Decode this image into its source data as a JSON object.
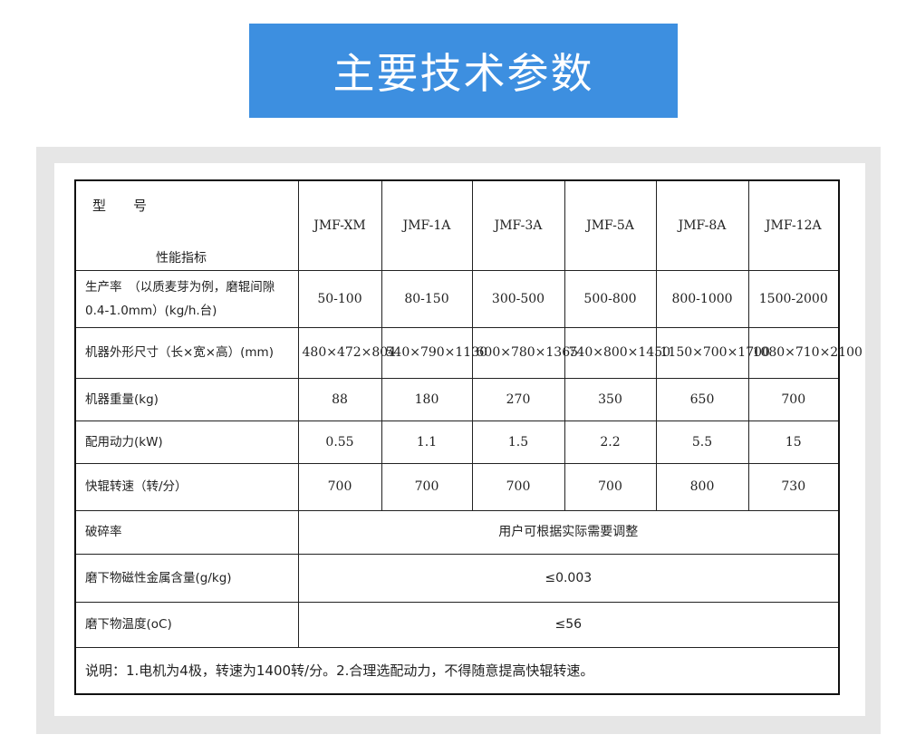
{
  "title": "主要技术参数",
  "colors": {
    "title_bg": "#3d8fe0",
    "panel_bg": "#e6e6e6"
  },
  "table": {
    "header": {
      "model_label": "型　　号",
      "metric_label": "性能指标",
      "models": [
        "JMF-XM",
        "JMF-1A",
        "JMF-3A",
        "JMF-5A",
        "JMF-8A",
        "JMF-12A"
      ]
    },
    "rows": [
      {
        "label": "生产率　（以质麦芽为例，磨辊间隙 0.4-1.0mm）(kg/h.台)",
        "values": [
          "50-100",
          "80-150",
          "300-500",
          "500-800",
          "800-1000",
          "1500-2000"
        ]
      },
      {
        "label": "机器外形尺寸（长×宽×高）(mm)",
        "values": [
          "480×472×804",
          "540×790×1130",
          "600×780×1365",
          "740×800×1450",
          "1150×700×1700",
          "1080×710×2100"
        ]
      },
      {
        "label": "机器重量(kg)",
        "values": [
          "88",
          "180",
          "270",
          "350",
          "650",
          "700"
        ]
      },
      {
        "label": "配用动力(kW)",
        "values": [
          "0.55",
          "1.1",
          "1.5",
          "2.2",
          "5.5",
          "15"
        ]
      },
      {
        "label": "快辊转速（转/分）",
        "values": [
          "700",
          "700",
          "700",
          "700",
          "800",
          "730"
        ]
      }
    ],
    "span_rows": [
      {
        "label": "破碎率",
        "value": "用户可根据实际需要调整"
      },
      {
        "label": "磨下物磁性金属含量(g/kg)",
        "value": "≤0.003"
      },
      {
        "label": "磨下物温度(oC)",
        "value": "≤56"
      }
    ],
    "note": "说明：1.电机为4极，转速为1400转/分。2.合理选配动力，不得随意提高快辊转速。"
  }
}
